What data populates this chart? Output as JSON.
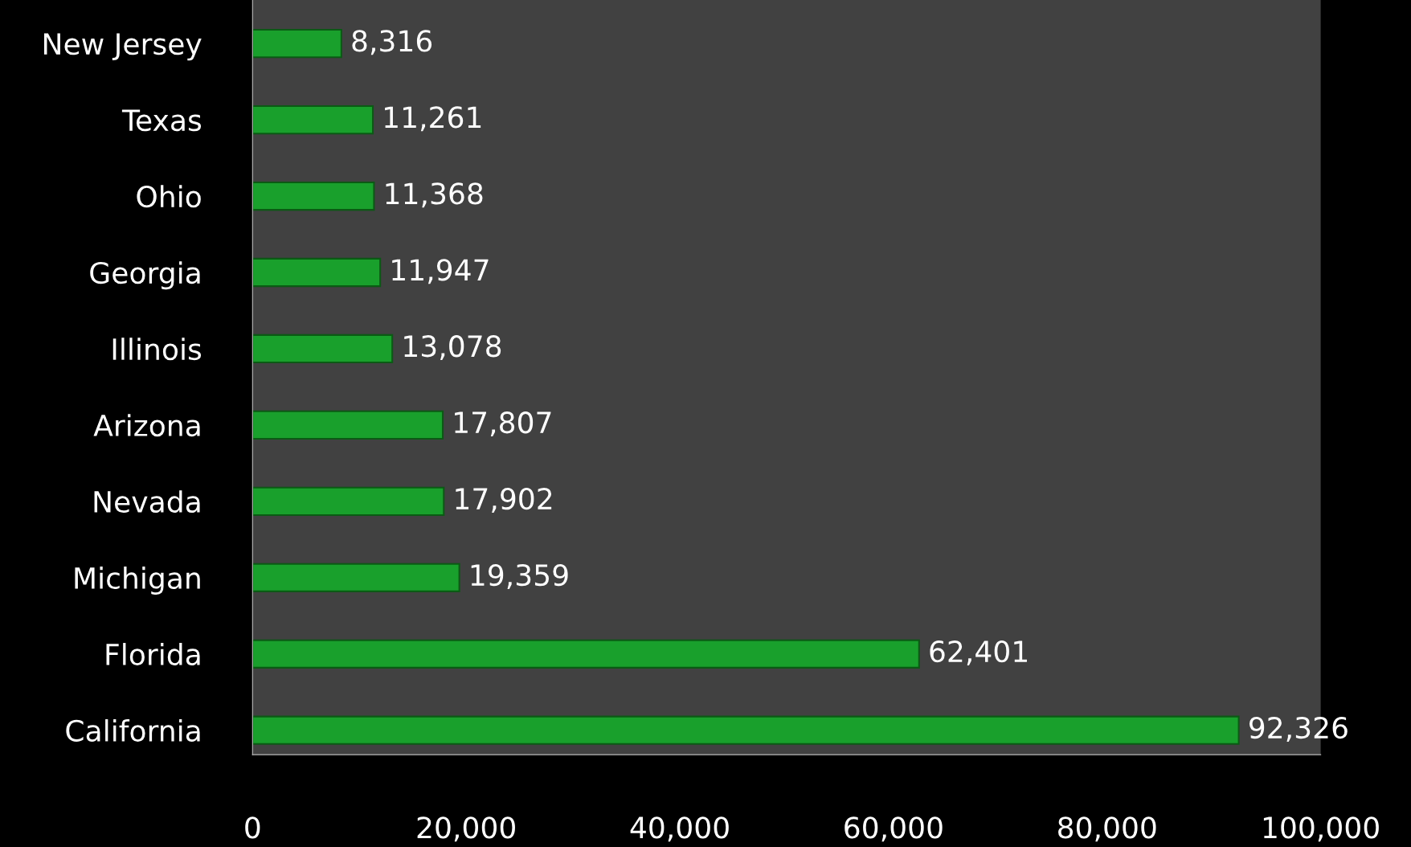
{
  "chart_data": {
    "type": "bar",
    "orientation": "horizontal",
    "categories": [
      "New Jersey",
      "Texas",
      "Ohio",
      "Georgia",
      "Illinois",
      "Arizona",
      "Nevada",
      "Michigan",
      "Florida",
      "California"
    ],
    "values": [
      8316,
      11261,
      11368,
      11947,
      13078,
      17807,
      17902,
      19359,
      62401,
      92326
    ],
    "color": "#19a02c",
    "xlim": [
      0,
      100000
    ],
    "xticks": [
      {
        "value": 0,
        "label": "0"
      },
      {
        "value": 20000,
        "label": "20,000"
      },
      {
        "value": 40000,
        "label": "40,000"
      },
      {
        "value": 60000,
        "label": "60,000"
      },
      {
        "value": 80000,
        "label": "80,000"
      },
      {
        "value": 100000,
        "label": "100,000"
      }
    ],
    "value_labels": [
      "8,316",
      "11,261",
      "11,368",
      "11,947",
      "13,078",
      "17,807",
      "17,902",
      "19,359",
      "62,401",
      "92,326"
    ],
    "grid": false,
    "legend": false
  }
}
